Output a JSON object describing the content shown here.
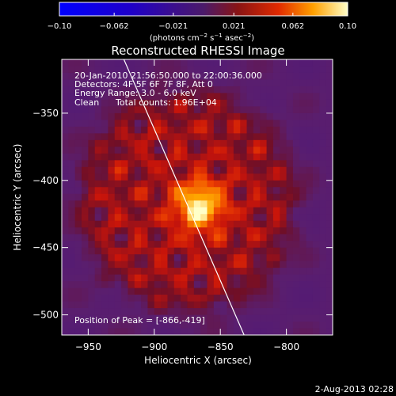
{
  "chart_data": {
    "type": "heatmap",
    "title": "Reconstructed RHESSI Image",
    "xlabel": "Heliocentric X (arcsec)",
    "ylabel": "Heliocentric Y (arcsec)",
    "xlim": [
      -970,
      -765
    ],
    "ylim": [
      -515,
      -310
    ],
    "x_ticks": [
      -950,
      -900,
      -850,
      -800
    ],
    "x_tick_labels": [
      "−950",
      "−900",
      "−850",
      "−800"
    ],
    "y_ticks": [
      -350,
      -400,
      -450,
      -500
    ],
    "y_tick_labels": [
      "−350",
      "−400",
      "−450",
      "−500"
    ],
    "colorbar": {
      "range": [
        -0.1,
        0.1
      ],
      "ticks": [
        -0.1,
        -0.062,
        -0.021,
        0.021,
        0.062,
        0.1
      ],
      "tick_labels": [
        "−0.10",
        "−0.062",
        "−0.021",
        "0.021",
        "0.062",
        "0.10"
      ],
      "units_text": "(photons cm",
      "units_exp1": "−2",
      "units_mid": " s",
      "units_exp2": "−1",
      "units_mid2": " asec",
      "units_exp3": "−2",
      "units_close": ")"
    },
    "annotations": {
      "time_range": "20-Jan-2010 21:56:50.000 to 22:00:36.000",
      "detectors": "Detectors: 4F 5F 6F 7F 8F, Att 0",
      "energy_range": "Energy Range: 3.0 - 6.0 keV",
      "method": "Clean",
      "total_counts": "Total counts: 1.96E+04",
      "peak": "Position of Peak = [-866,-419]"
    },
    "peak_position": [
      -866,
      -419
    ],
    "limb_line": [
      [
        -923,
        -310
      ],
      [
        -832,
        -515
      ]
    ],
    "source_center": [
      -875,
      -415
    ],
    "disk_radius_arcsec": 80
  },
  "footer": {
    "timestamp": "2-Aug-2013 02:28"
  },
  "colors": {
    "background": "#000000",
    "text": "#ffffff",
    "low": "#0000ff",
    "mid": "#5a1f8a",
    "high": "#ffff80"
  }
}
